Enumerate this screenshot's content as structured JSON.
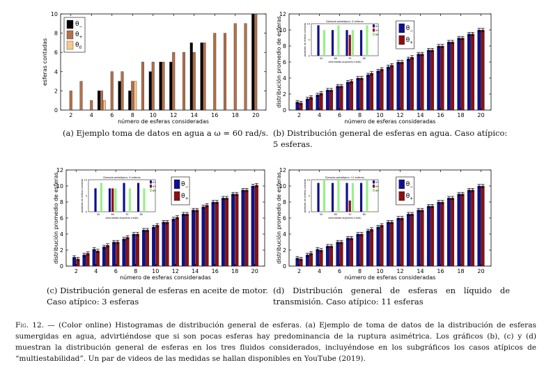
{
  "figure_caption": {
    "label": "Fig. 12.",
    "dash": " — ",
    "text": "(Color online) Histogramas de distribución general de esferas. (a) Ejemplo de toma de datos de la distribución de esferas sumergidas en agua, advirtiéndose que si son pocas esferas hay predominancia de la ruptura asimétrica. Los gráficos (b), (c) y (d) muestran la distribución general de esferas en los tres fluidos considerados, incluyéndose en los subgráficos los casos atípicos de “multiestabilidad”. Un par de videos de las medidas se hallan disponibles en YouTube (2019)."
  },
  "subcaptions": {
    "a": "(a) Ejemplo toma de datos en agua a ω = 60 rad/s.",
    "b": "(b) Distribución general de esferas en agua. Caso atípico: 5 esferas.",
    "c": "(c) Distribución general de esferas en aceite de motor. Caso atípico: 3 esferas",
    "d": "(d) Distribución general de esferas en líquido de transmisión. Caso atípico: 11 esferas"
  },
  "colors": {
    "theta_minus_a": "#000000",
    "theta_plus_a": "#b5704a",
    "theta_0_a": "#f7c98a",
    "theta_minus": "#10108f",
    "theta_plus": "#8a1010",
    "theta_0": "#98f08a"
  },
  "chart_data": [
    {
      "id": "a",
      "type": "bar",
      "xlabel": "número de esferas consideradas",
      "ylabel": "esferas contadas",
      "ylim": [
        0,
        10
      ],
      "xlim": [
        1,
        21
      ],
      "xticks": [
        "2",
        "4",
        "6",
        "8",
        "10",
        "12",
        "14",
        "16",
        "18",
        "20"
      ],
      "yticks": [
        "0",
        "2",
        "4",
        "6",
        "8",
        "10"
      ],
      "legend": {
        "placement": "top-left",
        "entries": [
          "θ−",
          "θ+",
          "θ0"
        ]
      },
      "categories": [
        2,
        3,
        4,
        5,
        6,
        7,
        8,
        9,
        10,
        11,
        12,
        13,
        14,
        15,
        16,
        17,
        18,
        19,
        20
      ],
      "series": [
        {
          "name": "θ−",
          "values": [
            0,
            0,
            0,
            2,
            0,
            3,
            2,
            0,
            4,
            5,
            5,
            0,
            7,
            7,
            0,
            0,
            0,
            0,
            10
          ]
        },
        {
          "name": "θ+",
          "values": [
            2,
            3,
            1,
            2,
            4,
            4,
            3,
            5,
            5,
            5,
            6,
            6,
            6,
            7,
            8,
            8,
            9,
            9,
            10
          ]
        },
        {
          "name": "θ0",
          "values": [
            0,
            0,
            0,
            1,
            0,
            0,
            3,
            0,
            0,
            0,
            0,
            0,
            0,
            0,
            0,
            0,
            0,
            0,
            0
          ]
        }
      ]
    },
    {
      "id": "b",
      "type": "bar",
      "xlabel": "número de esferas consideradas",
      "ylabel": "distribución promedio de esferas",
      "ylim": [
        0,
        12
      ],
      "xlim": [
        1,
        21
      ],
      "xticks": [
        "2",
        "4",
        "6",
        "8",
        "10",
        "12",
        "14",
        "16",
        "18",
        "20"
      ],
      "yticks": [
        "0",
        "2",
        "4",
        "6",
        "8",
        "10",
        "12"
      ],
      "legend": {
        "placement": "top-right",
        "entries": [
          "θ−",
          "θ+"
        ]
      },
      "categories": [
        2,
        3,
        4,
        5,
        6,
        7,
        8,
        9,
        10,
        11,
        12,
        13,
        14,
        15,
        16,
        17,
        18,
        19,
        20
      ],
      "series": [
        {
          "name": "θ−",
          "values": [
            1.0,
            1.4,
            1.9,
            2.5,
            3.0,
            3.5,
            4.0,
            4.4,
            4.9,
            5.4,
            6.0,
            6.4,
            7.0,
            7.5,
            8.0,
            8.5,
            9.0,
            9.5,
            10.0
          ]
        },
        {
          "name": "θ+",
          "values": [
            0.9,
            1.6,
            2.1,
            2.5,
            3.0,
            3.6,
            4.0,
            4.6,
            5.1,
            5.6,
            6.0,
            6.6,
            7.0,
            7.5,
            8.0,
            8.5,
            9.0,
            9.5,
            10.0
          ]
        }
      ],
      "inset": {
        "title": "Ejemplo patológico: 5 esferas",
        "xlabel": "velocidades angulares (rad/s)",
        "ylabel": "promedio de esferas contadas",
        "categories": [
          "50",
          "60",
          "70",
          "80"
        ],
        "ylim": [
          0,
          10
        ],
        "yticks": [
          "0",
          "5",
          "10"
        ],
        "legend_entries": [
          "θ−",
          "θ+",
          "θ0"
        ],
        "series": [
          {
            "name": "θ−",
            "values": [
              9.5,
              8.0,
              8.0,
              8.0
            ]
          },
          {
            "name": "θ+",
            "values": [
              0,
              0,
              6.5,
              0
            ]
          },
          {
            "name": "θ0",
            "values": [
              8.0,
              9.5,
              8.0,
              9.5
            ]
          }
        ]
      }
    },
    {
      "id": "c",
      "type": "bar",
      "xlabel": "número de esferas consideradas",
      "ylabel": "distribución promedio de esferas",
      "ylim": [
        0,
        12
      ],
      "xlim": [
        1,
        21
      ],
      "xticks": [
        "2",
        "4",
        "6",
        "8",
        "10",
        "12",
        "14",
        "16",
        "18",
        "20"
      ],
      "yticks": [
        "0",
        "2",
        "4",
        "6",
        "8",
        "10",
        "12"
      ],
      "legend": {
        "placement": "top-right",
        "entries": [
          "θ−",
          "θ+"
        ]
      },
      "categories": [
        2,
        3,
        4,
        5,
        6,
        7,
        8,
        9,
        10,
        11,
        12,
        13,
        14,
        15,
        16,
        17,
        18,
        19,
        20
      ],
      "series": [
        {
          "name": "θ−",
          "values": [
            1.1,
            1.4,
            2.1,
            2.4,
            3.0,
            3.4,
            4.0,
            4.5,
            4.9,
            5.5,
            5.9,
            6.5,
            7.0,
            7.4,
            8.0,
            8.5,
            9.0,
            9.5,
            10.0
          ]
        },
        {
          "name": "θ+",
          "values": [
            0.9,
            1.6,
            1.9,
            2.6,
            3.0,
            3.6,
            4.0,
            4.5,
            5.1,
            5.5,
            6.1,
            6.5,
            7.0,
            7.6,
            8.0,
            8.5,
            9.0,
            9.5,
            10.1
          ]
        }
      ],
      "inset": {
        "title": "Ejemplo patológico: 3 esferas",
        "xlabel": "velocidades angulares (rad/s)",
        "ylabel": "promedio de esferas contadas",
        "categories": [
          "50",
          "60",
          "70",
          "80"
        ],
        "ylim": [
          0,
          10
        ],
        "yticks": [
          "0",
          "5",
          "10"
        ],
        "legend_entries": [
          "θ−",
          "θ+",
          "θ0"
        ],
        "series": [
          {
            "name": "θ−",
            "values": [
              7.3,
              7.3,
              9.0,
              9.0
            ]
          },
          {
            "name": "θ+",
            "values": [
              0,
              7.3,
              0,
              0
            ]
          },
          {
            "name": "θ0",
            "values": [
              9.0,
              7.3,
              7.3,
              7.3
            ]
          }
        ]
      }
    },
    {
      "id": "d",
      "type": "bar",
      "xlabel": "número de esferas consideradas",
      "ylabel": "distribución promedio de esferas",
      "ylim": [
        0,
        12
      ],
      "xlim": [
        1,
        21
      ],
      "xticks": [
        "2",
        "4",
        "6",
        "8",
        "10",
        "12",
        "14",
        "16",
        "18",
        "20"
      ],
      "yticks": [
        "0",
        "2",
        "4",
        "6",
        "8",
        "10",
        "12"
      ],
      "legend": {
        "placement": "top-right",
        "entries": [
          "θ−",
          "θ+"
        ]
      },
      "categories": [
        2,
        3,
        4,
        5,
        6,
        7,
        8,
        9,
        10,
        11,
        12,
        13,
        14,
        15,
        16,
        17,
        18,
        19,
        20
      ],
      "series": [
        {
          "name": "θ−",
          "values": [
            1.0,
            1.4,
            2.1,
            2.5,
            3.0,
            3.5,
            4.0,
            4.4,
            4.9,
            5.5,
            6.0,
            6.5,
            7.0,
            7.5,
            8.0,
            8.5,
            9.0,
            9.5,
            10.0
          ]
        },
        {
          "name": "θ+",
          "values": [
            0.9,
            1.6,
            2.0,
            2.5,
            3.0,
            3.5,
            4.0,
            4.6,
            5.1,
            5.5,
            6.0,
            6.5,
            7.0,
            7.5,
            8.0,
            8.5,
            9.0,
            9.5,
            10.0
          ]
        }
      ],
      "inset": {
        "title": "Ejemplo patológico: 11 esferas",
        "xlabel": "velocidades angulares (rad/s)",
        "ylabel": "promedio de esferas contadas",
        "categories": [
          "50",
          "60",
          "70",
          "80"
        ],
        "ylim": [
          0,
          10
        ],
        "yticks": [
          "0",
          "5",
          "10"
        ],
        "legend_entries": [
          "θ−",
          "θ+",
          "θ0"
        ],
        "series": [
          {
            "name": "θ−",
            "values": [
              9.0,
              9.0,
              9.0,
              9.0
            ]
          },
          {
            "name": "θ+",
            "values": [
              0,
              0,
              3.5,
              0
            ]
          },
          {
            "name": "θ0",
            "values": [
              10.0,
              10.0,
              9.0,
              10.0
            ]
          }
        ]
      }
    }
  ]
}
